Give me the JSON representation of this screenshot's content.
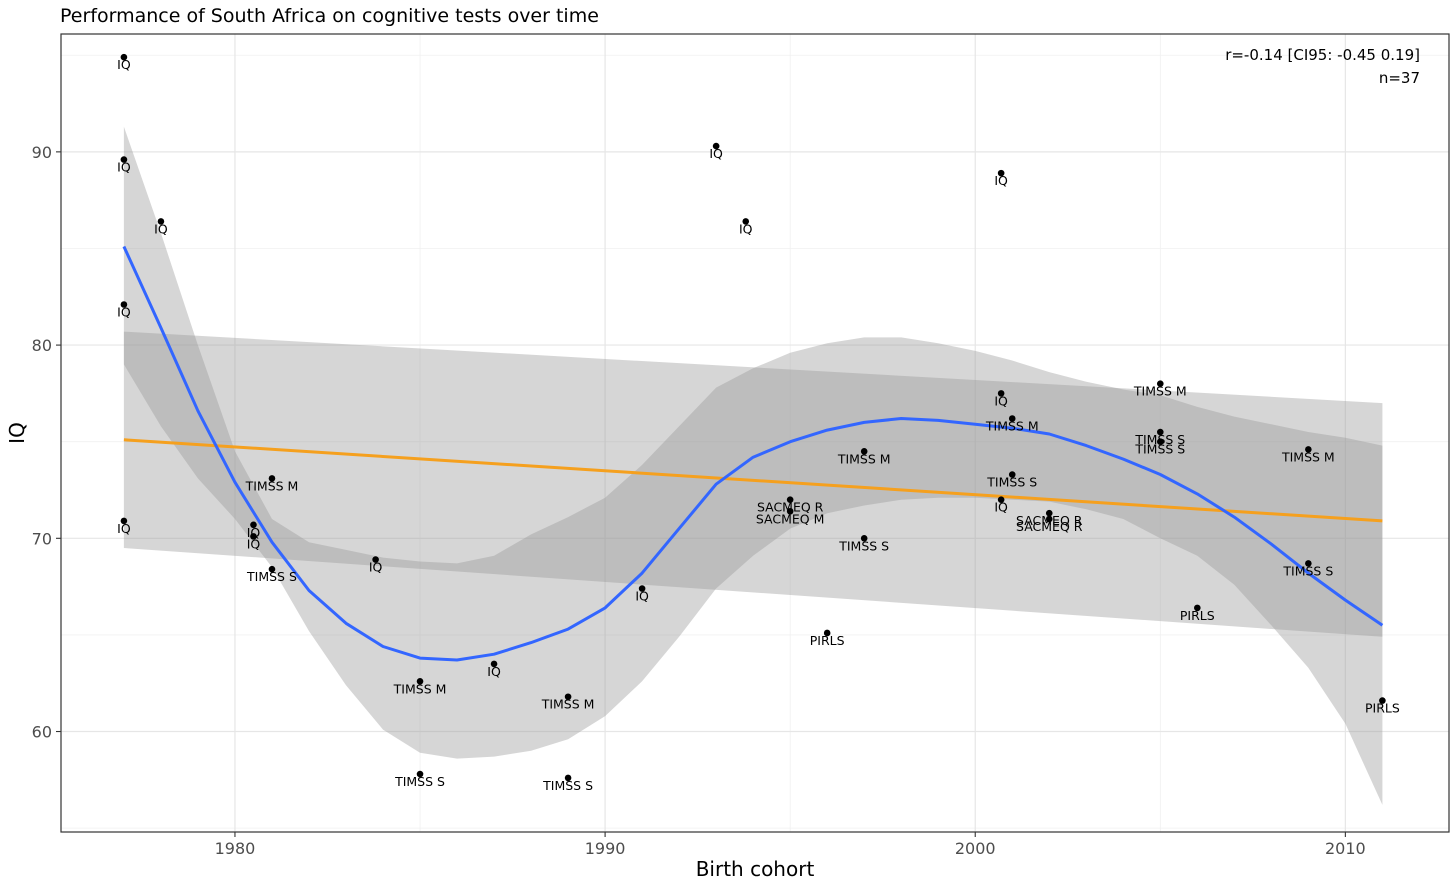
{
  "chart_data": {
    "type": "scatter",
    "title": "Performance of South Africa on cognitive tests over time",
    "xlabel": "Birth cohort",
    "ylabel": "IQ",
    "xlim": [
      1975.3,
      2012.8
    ],
    "ylim": [
      54.8,
      96.1
    ],
    "x_ticks": [
      1980,
      1990,
      2000,
      2010
    ],
    "y_ticks": [
      60,
      70,
      80,
      90
    ],
    "grid": true,
    "annotation_lines": [
      "r=-0.14 [CI95: -0.45 0.19]",
      "n=37"
    ],
    "points": [
      {
        "x": 1977.0,
        "y": 94.9,
        "label": "IQ"
      },
      {
        "x": 1977.0,
        "y": 89.6,
        "label": "IQ"
      },
      {
        "x": 1977.0,
        "y": 82.1,
        "label": "IQ"
      },
      {
        "x": 1977.0,
        "y": 70.9,
        "label": "IQ"
      },
      {
        "x": 1978.0,
        "y": 86.4,
        "label": "IQ"
      },
      {
        "x": 1980.5,
        "y": 70.7,
        "label": "IQ"
      },
      {
        "x": 1980.5,
        "y": 70.1,
        "label": "IQ"
      },
      {
        "x": 1981.0,
        "y": 73.1,
        "label": "TIMSS M"
      },
      {
        "x": 1981.0,
        "y": 68.4,
        "label": "TIMSS S"
      },
      {
        "x": 1983.8,
        "y": 68.9,
        "label": "IQ"
      },
      {
        "x": 1985.0,
        "y": 62.6,
        "label": "TIMSS M"
      },
      {
        "x": 1985.0,
        "y": 57.8,
        "label": "TIMSS S"
      },
      {
        "x": 1987.0,
        "y": 63.5,
        "label": "IQ"
      },
      {
        "x": 1989.0,
        "y": 61.8,
        "label": "TIMSS M"
      },
      {
        "x": 1989.0,
        "y": 57.6,
        "label": "TIMSS S"
      },
      {
        "x": 1991.0,
        "y": 67.4,
        "label": "IQ"
      },
      {
        "x": 1993.0,
        "y": 90.3,
        "label": "IQ"
      },
      {
        "x": 1993.8,
        "y": 86.4,
        "label": "IQ"
      },
      {
        "x": 1995.0,
        "y": 72.0,
        "label": "SACMEQ R"
      },
      {
        "x": 1995.0,
        "y": 71.4,
        "label": "SACMEQ M"
      },
      {
        "x": 1996.0,
        "y": 65.1,
        "label": "PIRLS"
      },
      {
        "x": 1997.0,
        "y": 74.5,
        "label": "TIMSS M"
      },
      {
        "x": 1997.0,
        "y": 70.0,
        "label": "TIMSS S"
      },
      {
        "x": 2000.7,
        "y": 88.9,
        "label": "IQ"
      },
      {
        "x": 2000.7,
        "y": 77.5,
        "label": "IQ"
      },
      {
        "x": 2000.7,
        "y": 72.0,
        "label": "IQ"
      },
      {
        "x": 2001.0,
        "y": 76.2,
        "label": "TIMSS M"
      },
      {
        "x": 2001.0,
        "y": 73.3,
        "label": "TIMSS S"
      },
      {
        "x": 2002.0,
        "y": 71.3,
        "label": "SACMEQ R"
      },
      {
        "x": 2002.0,
        "y": 71.0,
        "label": "SACMEQ R"
      },
      {
        "x": 2005.0,
        "y": 78.0,
        "label": "TIMSS M"
      },
      {
        "x": 2005.0,
        "y": 75.5,
        "label": "TIMSS S"
      },
      {
        "x": 2005.0,
        "y": 75.0,
        "label": "TIMSS S"
      },
      {
        "x": 2006.0,
        "y": 66.4,
        "label": "PIRLS"
      },
      {
        "x": 2009.0,
        "y": 74.6,
        "label": "TIMSS M"
      },
      {
        "x": 2009.0,
        "y": 68.7,
        "label": "TIMSS S"
      },
      {
        "x": 2011.0,
        "y": 61.6,
        "label": "PIRLS"
      }
    ],
    "linear_fit": {
      "color": "#f5a01e",
      "x": [
        1977.0,
        2011.0
      ],
      "y": [
        75.1,
        70.9
      ],
      "ci_upper": [
        80.7,
        77.0
      ],
      "ci_lower": [
        69.5,
        64.9
      ]
    },
    "loess_fit": {
      "color": "#3366ff",
      "x": [
        1977,
        1978,
        1979,
        1980,
        1981,
        1982,
        1983,
        1984,
        1985,
        1986,
        1987,
        1988,
        1989,
        1990,
        1991,
        1992,
        1993,
        1994,
        1995,
        1996,
        1997,
        1998,
        1999,
        2000,
        2001,
        2002,
        2003,
        2004,
        2005,
        2006,
        2007,
        2008,
        2009,
        2010,
        2011
      ],
      "y": [
        85.1,
        80.9,
        76.6,
        72.9,
        69.8,
        67.3,
        65.6,
        64.4,
        63.8,
        63.7,
        64.0,
        64.6,
        65.3,
        66.4,
        68.2,
        70.5,
        72.8,
        74.2,
        75.0,
        75.6,
        76.0,
        76.2,
        76.1,
        75.9,
        75.7,
        75.4,
        74.8,
        74.1,
        73.3,
        72.3,
        71.1,
        69.7,
        68.2,
        66.8,
        65.5
      ],
      "ci_upper": [
        91.3,
        85.8,
        80.0,
        74.5,
        71.0,
        69.8,
        69.4,
        69.0,
        68.8,
        68.7,
        69.1,
        70.2,
        71.1,
        72.1,
        73.8,
        75.8,
        77.8,
        78.8,
        79.6,
        80.1,
        80.4,
        80.4,
        80.1,
        79.7,
        79.2,
        78.6,
        78.1,
        77.7,
        77.4,
        76.8,
        76.3,
        75.9,
        75.5,
        75.2,
        74.8
      ],
      "ci_lower": [
        79.0,
        75.8,
        73.1,
        71.0,
        68.5,
        65.2,
        62.4,
        60.1,
        58.9,
        58.6,
        58.7,
        59.0,
        59.6,
        60.8,
        62.6,
        64.9,
        67.4,
        69.1,
        70.5,
        71.3,
        71.7,
        72.0,
        72.1,
        72.1,
        72.0,
        71.9,
        71.5,
        71.0,
        70.0,
        69.1,
        67.6,
        65.5,
        63.3,
        60.4,
        56.2
      ]
    }
  }
}
